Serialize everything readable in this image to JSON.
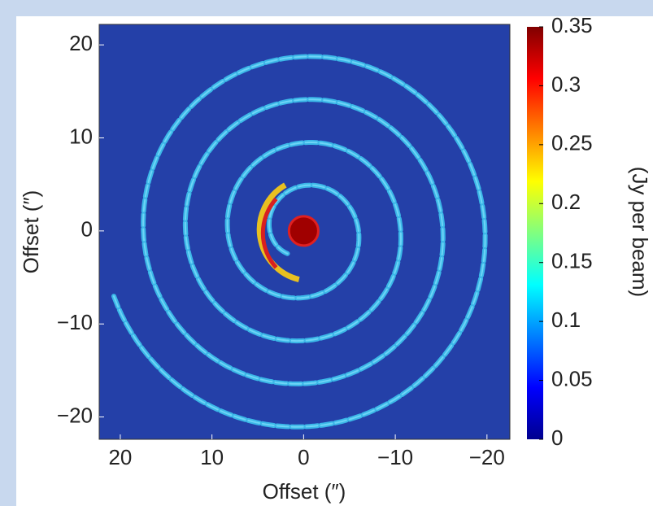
{
  "chart_data": {
    "type": "image",
    "x_label": "Offset (″)",
    "y_label": "Offset (″)",
    "colorbar_label": "(Jy per beam)",
    "xlim": [
      22.3,
      -22.5
    ],
    "xticks": [
      20,
      10,
      0,
      {
        "value": -10,
        "label": "−10"
      },
      {
        "value": -20,
        "label": "−20"
      }
    ],
    "ylim": [
      -22.4,
      22.2
    ],
    "yticks": [
      {
        "value": -20,
        "label": "−20"
      },
      {
        "value": -10,
        "label": "−10"
      },
      0,
      10,
      20
    ],
    "clim": [
      0,
      0.35
    ],
    "cticks": [
      0,
      0.05,
      0.1,
      0.15,
      0.2,
      0.25,
      0.3,
      0.35
    ],
    "colormap": "jet"
  }
}
